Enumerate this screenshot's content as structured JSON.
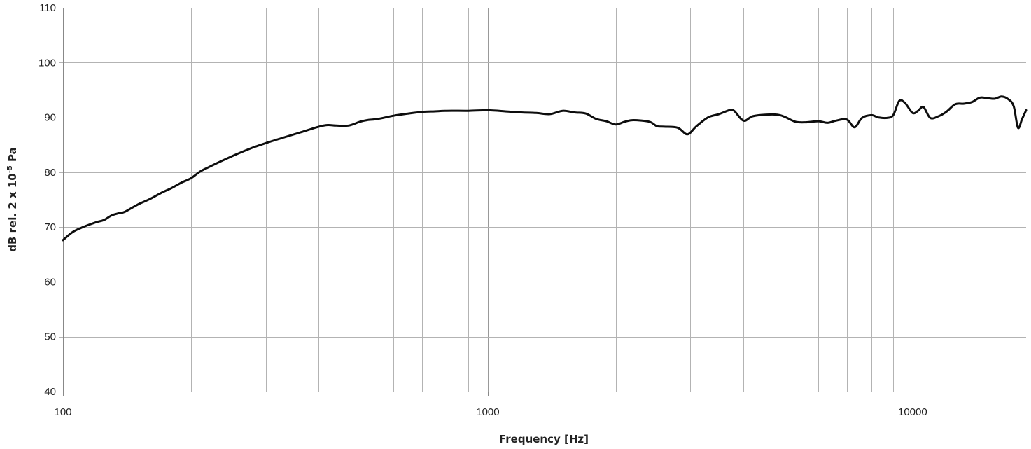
{
  "chart_data": {
    "type": "line",
    "title": "",
    "xlabel": "Frequency [Hz]",
    "ylabel": "dB rel. 2 x 10",
    "ylabel_exponent": "-5",
    "ylabel_unit": " Pa",
    "xscale": "log",
    "xlim": [
      100,
      18500
    ],
    "ylim": [
      40,
      110
    ],
    "grid": true,
    "legend": "none",
    "x_ticks": [
      100,
      1000,
      10000
    ],
    "x_tick_labels": [
      "100",
      "1000",
      "10000"
    ],
    "y_ticks": [
      40,
      50,
      60,
      70,
      80,
      90,
      100,
      110
    ],
    "y_tick_labels": [
      "40",
      "50",
      "60",
      "70",
      "80",
      "90",
      "100",
      "110"
    ],
    "line_color": "#0d0d0d",
    "series": [
      {
        "x": [
          100,
          105,
          110,
          115,
          120,
          125,
          130,
          135,
          140,
          150,
          160,
          170,
          180,
          190,
          200,
          210,
          220,
          240,
          260,
          280,
          300,
          330,
          360,
          400,
          420,
          440,
          470,
          500,
          520,
          550,
          600,
          650,
          700,
          750,
          800,
          900,
          1000,
          1100,
          1200,
          1300,
          1400,
          1500,
          1600,
          1700,
          1800,
          1900,
          2000,
          2100,
          2200,
          2400,
          2500,
          2600,
          2800,
          2950,
          3100,
          3300,
          3500,
          3700,
          3800,
          4000,
          4200,
          4500,
          4800,
          5000,
          5300,
          5600,
          6000,
          6300,
          6600,
          7000,
          7300,
          7600,
          8000,
          8300,
          8700,
          9000,
          9300,
          9600,
          10000,
          10300,
          10600,
          11000,
          11500,
          12000,
          12600,
          13200,
          13800,
          14400,
          15000,
          15600,
          16200,
          16800,
          17300,
          17700,
          18100,
          18500
        ],
        "y": [
          67.6,
          69.0,
          69.8,
          70.4,
          70.9,
          71.3,
          72.1,
          72.5,
          72.8,
          74.1,
          75.1,
          76.2,
          77.1,
          78.1,
          78.9,
          80.1,
          80.9,
          82.3,
          83.5,
          84.5,
          85.3,
          86.3,
          87.2,
          88.3,
          88.6,
          88.5,
          88.5,
          89.2,
          89.5,
          89.7,
          90.3,
          90.7,
          91.0,
          91.1,
          91.2,
          91.2,
          91.3,
          91.1,
          90.9,
          90.8,
          90.6,
          91.2,
          90.9,
          90.7,
          89.7,
          89.3,
          88.7,
          89.2,
          89.5,
          89.2,
          88.4,
          88.3,
          88.1,
          86.9,
          88.4,
          90.0,
          90.6,
          91.3,
          91.2,
          89.4,
          90.2,
          90.5,
          90.5,
          90.1,
          89.2,
          89.1,
          89.3,
          89.0,
          89.4,
          89.6,
          88.2,
          89.9,
          90.4,
          90.0,
          89.9,
          90.4,
          93.0,
          92.6,
          90.8,
          91.2,
          91.9,
          89.9,
          90.2,
          91.0,
          92.4,
          92.5,
          92.8,
          93.6,
          93.5,
          93.4,
          93.8,
          93.3,
          92.0,
          88.1,
          89.7,
          91.3
        ]
      }
    ]
  }
}
